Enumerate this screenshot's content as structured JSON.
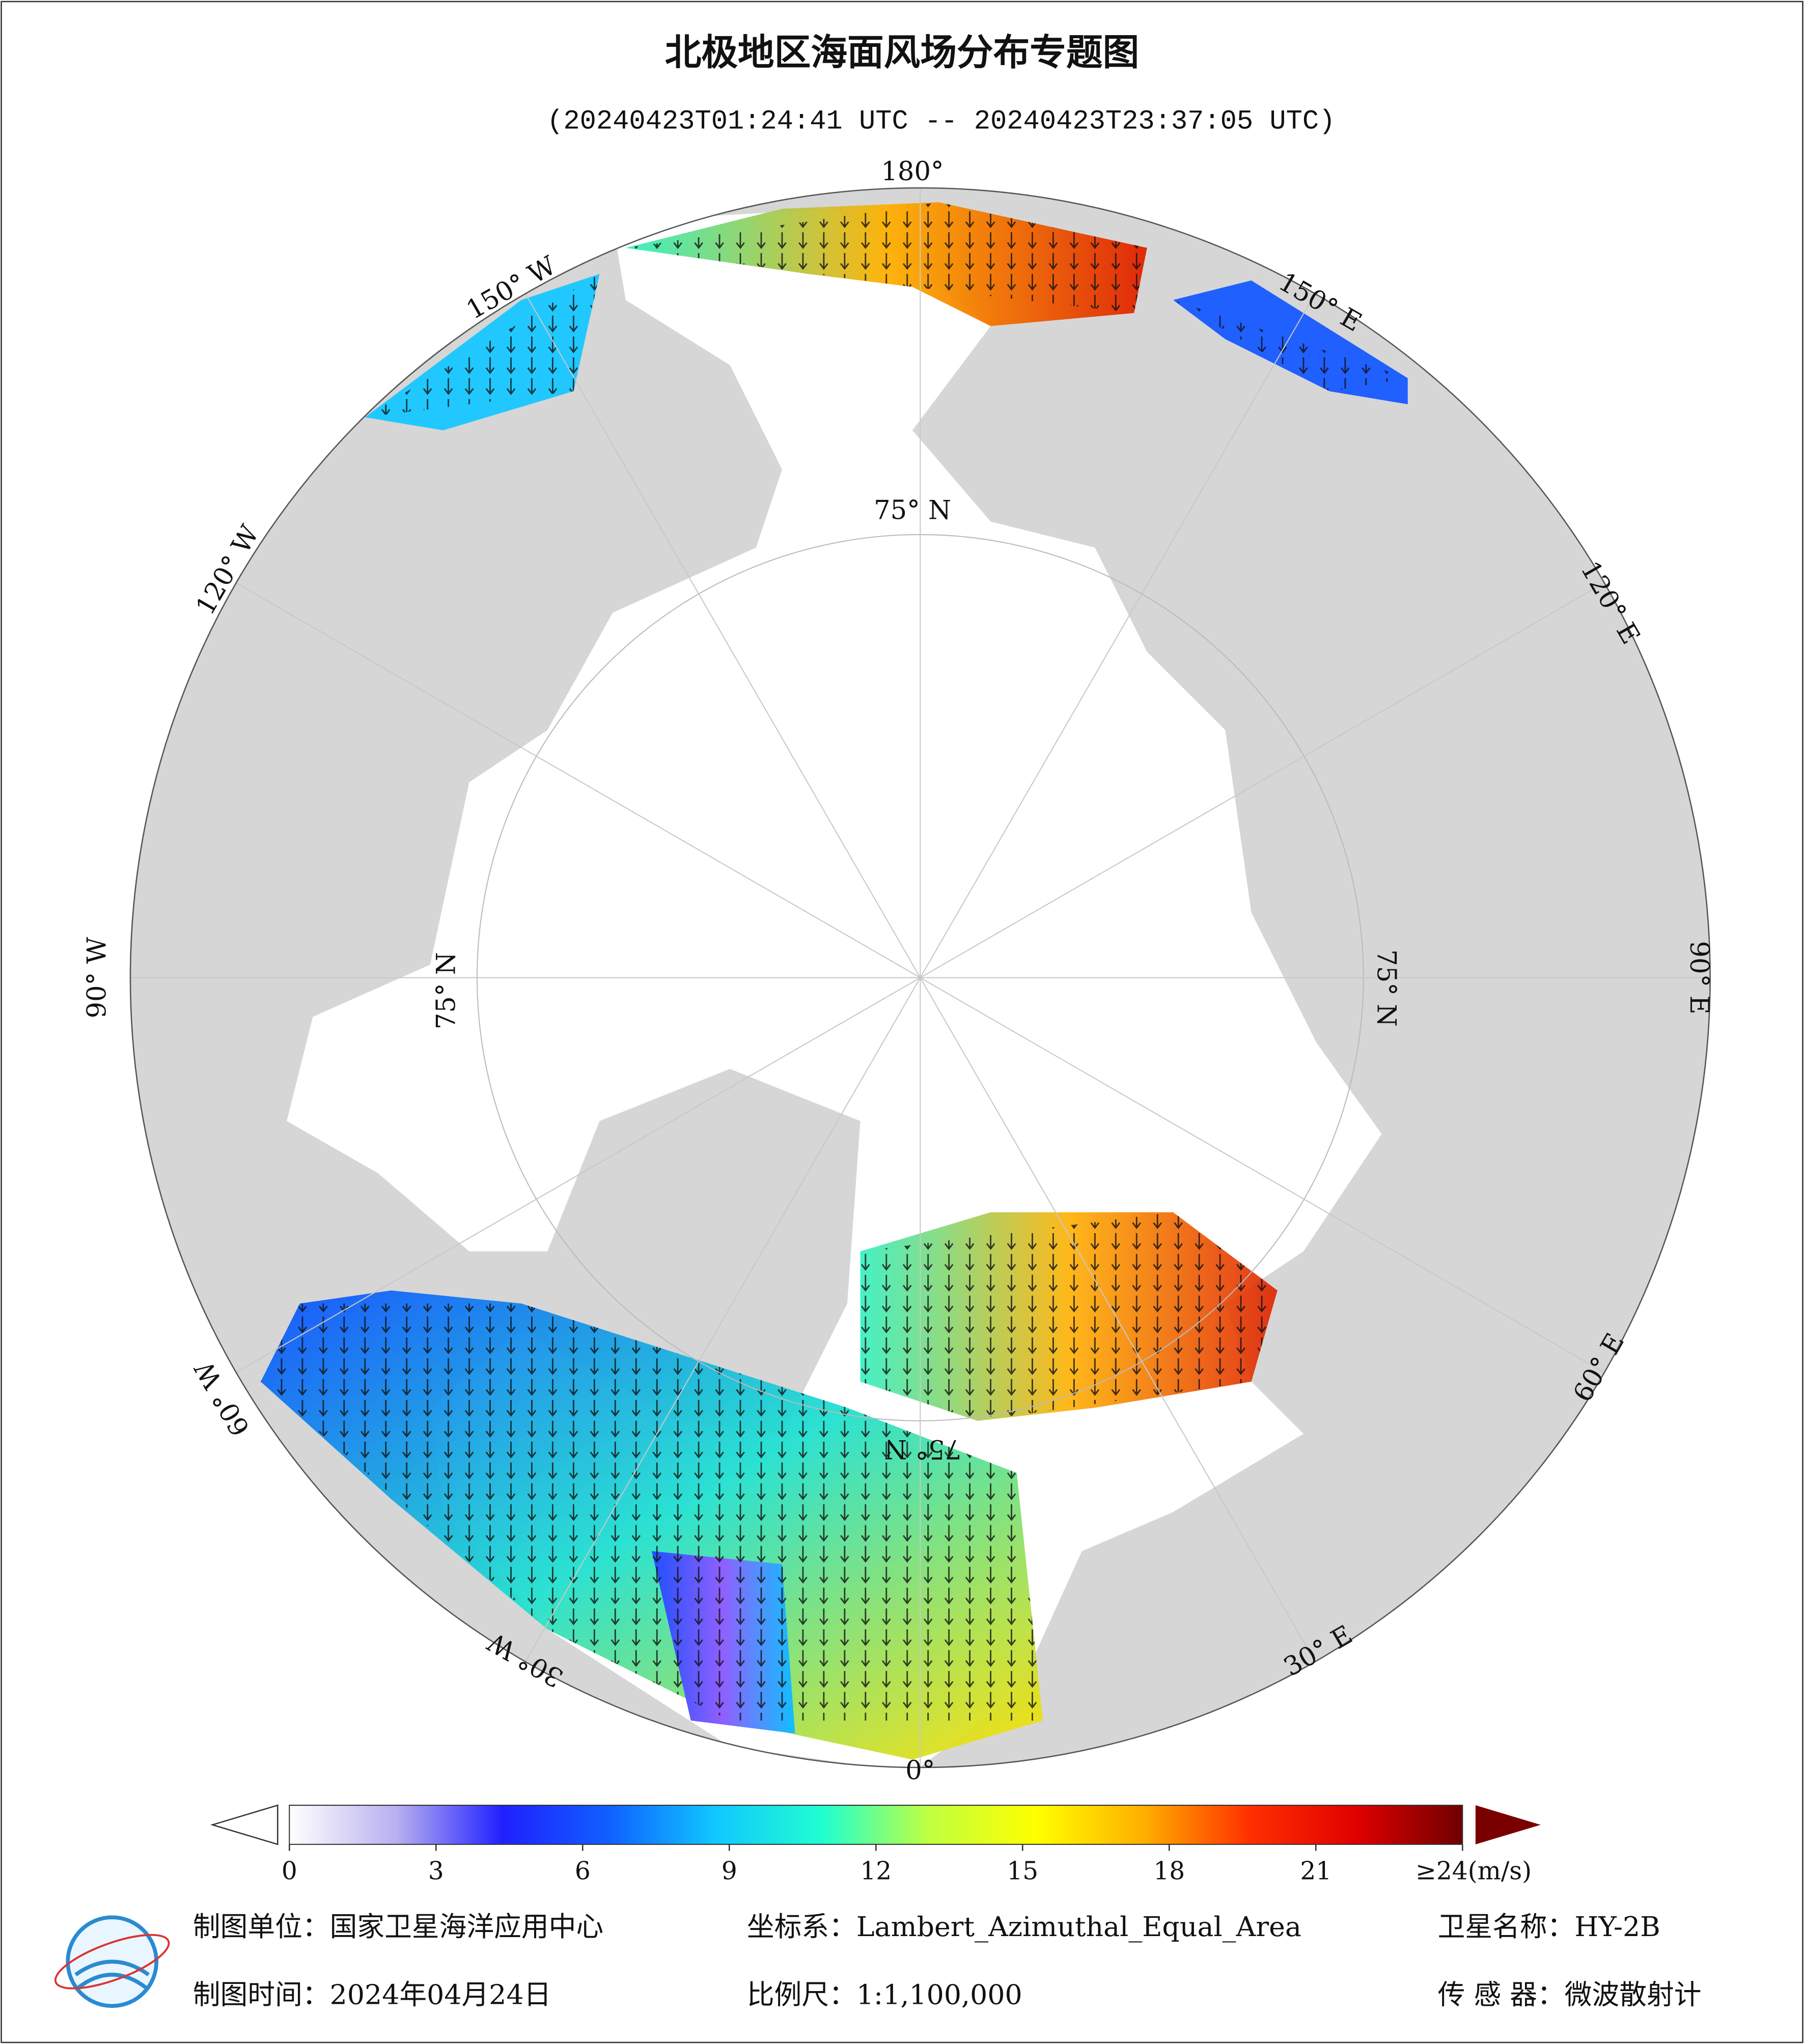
{
  "header": {
    "title": "北极地区海面风场分布专题图",
    "subtitle": "(20240423T01:24:41 UTC -- 20240423T23:37:05 UTC)"
  },
  "graticule": {
    "labels": [
      "180°",
      "150° E",
      "120° E",
      "90° E",
      "60° E",
      "30° E",
      "0°",
      "30° W",
      "60° W",
      "90° W",
      "120° W",
      "150° W",
      "75° N",
      "75° N",
      "75° N",
      "75° N"
    ]
  },
  "colorbar": {
    "lim": [
      0,
      24
    ],
    "ticks": [
      0,
      3,
      6,
      9,
      12,
      15,
      18,
      21,
      {
        "value": 24,
        "label": "≥24(m/s)"
      }
    ],
    "colors": [
      "#ffffff",
      "#b8b0f0",
      "#2020ff",
      "#1060ff",
      "#10c8ff",
      "#20ffd0",
      "#c0ff40",
      "#ffff00",
      "#ffb000",
      "#ff3000",
      "#e00000",
      "#700000"
    ]
  },
  "footer": {
    "items": [
      "制图单位：国家卫星海洋应用中心",
      "坐标系：Lambert_Azimuthal_Equal_Area",
      "卫星名称：HY-2B",
      "制图时间：2024年04月24日",
      "比例尺：1:1,100,000",
      "传 感 器：微波散射计"
    ]
  }
}
